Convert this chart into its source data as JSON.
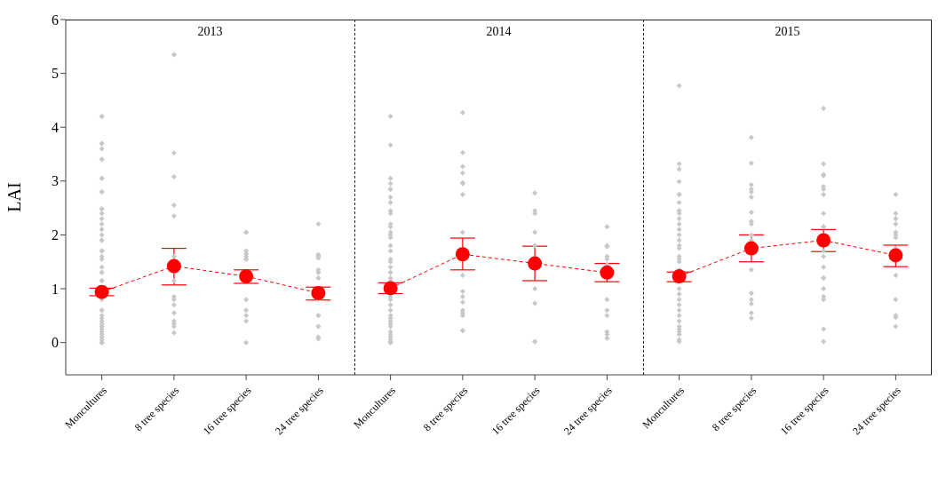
{
  "chart_data": [
    {
      "type": "line",
      "title": "2013",
      "ylabel": "LAI",
      "categories": [
        "Moncultures",
        "8 tree species",
        "16 tree species",
        "24 tree species"
      ],
      "ylim": [
        -0.6,
        6
      ],
      "yticks": [
        0,
        1,
        2,
        3,
        4,
        5,
        6
      ],
      "grid": false,
      "series": [
        {
          "type": "scatter",
          "color": "#c8c8c8",
          "marker": "diamond",
          "x": [
            "Moncultures",
            "Moncultures",
            "Moncultures",
            "Moncultures",
            "Moncultures",
            "Moncultures",
            "Moncultures",
            "Moncultures",
            "Moncultures",
            "Moncultures",
            "Moncultures",
            "Moncultures",
            "Moncultures",
            "Moncultures",
            "Moncultures",
            "Moncultures",
            "Moncultures",
            "Moncultures",
            "Moncultures",
            "Moncultures",
            "Moncultures",
            "Moncultures",
            "Moncultures",
            "Moncultures",
            "Moncultures",
            "Moncultures",
            "Moncultures",
            "Moncultures",
            "Moncultures",
            "Moncultures",
            "Moncultures",
            "Moncultures",
            "Moncultures",
            "Moncultures",
            "Moncultures",
            "Moncultures",
            "Moncultures",
            "Moncultures",
            "Moncultures",
            "Moncultures",
            "Moncultures",
            "Moncultures",
            "Moncultures",
            "Moncultures",
            "Moncultures",
            "Moncultures",
            "Moncultures",
            "Moncultures",
            "8 tree species",
            "8 tree species",
            "8 tree species",
            "8 tree species",
            "8 tree species",
            "8 tree species",
            "8 tree species",
            "8 tree species",
            "8 tree species",
            "8 tree species",
            "8 tree species",
            "8 tree species",
            "8 tree species",
            "8 tree species",
            "8 tree species",
            "8 tree species",
            "16 tree species",
            "16 tree species",
            "16 tree species",
            "16 tree species",
            "16 tree species",
            "16 tree species",
            "16 tree species",
            "16 tree species",
            "16 tree species",
            "16 tree species",
            "16 tree species",
            "16 tree species",
            "24 tree species",
            "24 tree species",
            "24 tree species",
            "24 tree species",
            "24 tree species",
            "24 tree species",
            "24 tree species",
            "24 tree species",
            "24 tree species",
            "24 tree species",
            "24 tree species",
            "24 tree species",
            "24 tree species",
            "24 tree species",
            "24 tree species",
            "24 tree species"
          ],
          "values": [
            4.2,
            4.2,
            3.7,
            3.7,
            3.6,
            3.4,
            3.4,
            3.05,
            3.05,
            2.8,
            2.8,
            2.48,
            2.48,
            2.4,
            2.3,
            2.2,
            2.1,
            2.0,
            1.9,
            1.9,
            1.7,
            1.7,
            1.7,
            1.55,
            1.6,
            1.4,
            1.3,
            1.3,
            1.15,
            1.15,
            1.15,
            0.8,
            0.6,
            0.6,
            0.5,
            0.45,
            0.4,
            0.35,
            0.3,
            0.3,
            0.25,
            0.2,
            0.15,
            0.1,
            0.05,
            0.0,
            0.0,
            0.0,
            5.35,
            5.35,
            3.52,
            3.08,
            2.55,
            2.35,
            1.6,
            1.15,
            0.85,
            0.8,
            0.7,
            0.55,
            0.4,
            0.35,
            0.3,
            0.18,
            2.05,
            2.05,
            1.7,
            1.65,
            1.55,
            1.55,
            1.6,
            0.8,
            0.6,
            0.5,
            0.4,
            0.0,
            2.2,
            1.57,
            1.6,
            1.63,
            1.63,
            1.35,
            1.3,
            1.3,
            1.2,
            0.8,
            0.5,
            0.5,
            0.3,
            0.3,
            0.1,
            0.07
          ]
        },
        {
          "color": "#ff0000",
          "marker": "circle",
          "line_style": "dashed",
          "values": [
            0.94,
            1.42,
            1.23,
            0.92
          ],
          "errors": [
            [
              0.87,
              1.01
            ],
            [
              1.07,
              1.75
            ],
            [
              1.1,
              1.35
            ],
            [
              0.79,
              1.03
            ]
          ]
        }
      ]
    },
    {
      "type": "line",
      "title": "2014",
      "categories": [
        "Moncultures",
        "8 tree species",
        "16 tree species",
        "24 tree species"
      ],
      "ylim": [
        -0.6,
        6
      ],
      "yticks": [
        0,
        1,
        2,
        3,
        4,
        5,
        6
      ],
      "tick_labels": "x",
      "grid": false,
      "series": [
        {
          "type": "scatter",
          "color": "#c8c8c8",
          "marker": "diamond",
          "x": [
            "Moncultures",
            "Moncultures",
            "Moncultures",
            "Moncultures",
            "Moncultures",
            "Moncultures",
            "Moncultures",
            "Moncultures",
            "Moncultures",
            "Moncultures",
            "Moncultures",
            "Moncultures",
            "Moncultures",
            "Moncultures",
            "Moncultures",
            "Moncultures",
            "Moncultures",
            "Moncultures",
            "Moncultures",
            "Moncultures",
            "Moncultures",
            "Moncultures",
            "Moncultures",
            "Moncultures",
            "Moncultures",
            "Moncultures",
            "Moncultures",
            "Moncultures",
            "Moncultures",
            "Moncultures",
            "Moncultures",
            "Moncultures",
            "Moncultures",
            "Moncultures",
            "Moncultures",
            "Moncultures",
            "Moncultures",
            "Moncultures",
            "Moncultures",
            "Moncultures",
            "8 tree species",
            "8 tree species",
            "8 tree species",
            "8 tree species",
            "8 tree species",
            "8 tree species",
            "8 tree species",
            "8 tree species",
            "8 tree species",
            "8 tree species",
            "8 tree species",
            "8 tree species",
            "8 tree species",
            "8 tree species",
            "8 tree species",
            "8 tree species",
            "8 tree species",
            "16 tree species",
            "16 tree species",
            "16 tree species",
            "16 tree species",
            "16 tree species",
            "16 tree species",
            "16 tree species",
            "16 tree species",
            "16 tree species",
            "24 tree species",
            "24 tree species",
            "24 tree species",
            "24 tree species",
            "24 tree species",
            "24 tree species",
            "24 tree species",
            "24 tree species",
            "24 tree species",
            "24 tree species",
            "24 tree species",
            "24 tree species"
          ],
          "values": [
            4.2,
            3.67,
            3.05,
            2.95,
            2.85,
            2.85,
            2.7,
            2.6,
            2.45,
            2.4,
            2.2,
            2.15,
            2.05,
            2.0,
            1.95,
            1.8,
            1.7,
            1.55,
            1.5,
            1.4,
            1.3,
            1.3,
            1.2,
            1.15,
            0.85,
            0.8,
            0.7,
            0.6,
            0.5,
            0.45,
            0.4,
            0.35,
            0.3,
            0.2,
            0.15,
            0.1,
            0.05,
            0.02,
            0.0,
            0.0,
            4.27,
            3.53,
            3.27,
            3.15,
            2.97,
            2.95,
            2.75,
            2.05,
            1.25,
            0.95,
            0.85,
            0.75,
            0.6,
            0.55,
            0.5,
            0.22,
            0.22,
            2.78,
            2.45,
            2.4,
            2.05,
            1.8,
            1.0,
            0.73,
            0.02,
            0.02,
            2.15,
            1.8,
            1.78,
            1.6,
            1.55,
            1.45,
            0.8,
            0.6,
            0.5,
            0.2,
            0.15,
            0.08
          ]
        },
        {
          "color": "#ff0000",
          "marker": "circle",
          "line_style": "dashed",
          "values": [
            1.01,
            1.64,
            1.47,
            1.3
          ],
          "errors": [
            [
              0.91,
              1.11
            ],
            [
              1.35,
              1.94
            ],
            [
              1.15,
              1.79
            ],
            [
              1.13,
              1.47
            ]
          ]
        }
      ]
    },
    {
      "type": "line",
      "title": "2015",
      "categories": [
        "Moncultures",
        "8 tree species",
        "16 tree species",
        "24 tree species"
      ],
      "ylim": [
        -0.6,
        6
      ],
      "yticks": [
        0,
        1,
        2,
        3,
        4,
        5,
        6
      ],
      "tick_labels": "x",
      "grid": false,
      "series": [
        {
          "type": "scatter",
          "color": "#c8c8c8",
          "marker": "diamond",
          "x": [
            "Moncultures",
            "Moncultures",
            "Moncultures",
            "Moncultures",
            "Moncultures",
            "Moncultures",
            "Moncultures",
            "Moncultures",
            "Moncultures",
            "Moncultures",
            "Moncultures",
            "Moncultures",
            "Moncultures",
            "Moncultures",
            "Moncultures",
            "Moncultures",
            "Moncultures",
            "Moncultures",
            "Moncultures",
            "Moncultures",
            "Moncultures",
            "Moncultures",
            "Moncultures",
            "Moncultures",
            "Moncultures",
            "Moncultures",
            "Moncultures",
            "Moncultures",
            "Moncultures",
            "Moncultures",
            "Moncultures",
            "Moncultures",
            "Moncultures",
            "Moncultures",
            "8 tree species",
            "8 tree species",
            "8 tree species",
            "8 tree species",
            "8 tree species",
            "8 tree species",
            "8 tree species",
            "8 tree species",
            "8 tree species",
            "8 tree species",
            "8 tree species",
            "8 tree species",
            "8 tree species",
            "8 tree species",
            "8 tree species",
            "8 tree species",
            "8 tree species",
            "16 tree species",
            "16 tree species",
            "16 tree species",
            "16 tree species",
            "16 tree species",
            "16 tree species",
            "16 tree species",
            "16 tree species",
            "16 tree species",
            "16 tree species",
            "16 tree species",
            "16 tree species",
            "16 tree species",
            "16 tree species",
            "16 tree species",
            "16 tree species",
            "16 tree species",
            "16 tree species",
            "16 tree species",
            "16 tree species",
            "24 tree species",
            "24 tree species",
            "24 tree species",
            "24 tree species",
            "24 tree species",
            "24 tree species",
            "24 tree species",
            "24 tree species",
            "24 tree species",
            "24 tree species",
            "24 tree species",
            "24 tree species",
            "24 tree species",
            "24 tree species"
          ],
          "values": [
            4.77,
            3.32,
            3.22,
            2.99,
            2.75,
            2.75,
            2.6,
            2.45,
            2.45,
            2.4,
            2.3,
            2.2,
            2.1,
            2.0,
            1.9,
            1.8,
            1.75,
            1.6,
            1.55,
            1.5,
            1.35,
            1.0,
            0.9,
            0.8,
            0.7,
            0.6,
            0.5,
            0.4,
            0.3,
            0.25,
            0.2,
            0.15,
            0.05,
            0.02,
            3.81,
            3.33,
            2.93,
            2.85,
            2.8,
            2.7,
            2.42,
            2.25,
            2.2,
            2.0,
            1.9,
            1.35,
            0.92,
            0.8,
            0.72,
            0.55,
            0.45,
            4.35,
            3.32,
            3.12,
            3.1,
            2.9,
            2.85,
            2.75,
            2.4,
            2.15,
            2.15,
            1.7,
            1.6,
            1.4,
            1.2,
            1.2,
            1.0,
            0.85,
            0.8,
            0.25,
            0.02,
            2.75,
            2.4,
            2.3,
            2.3,
            2.2,
            2.05,
            2.0,
            1.95,
            1.75,
            1.25,
            0.8,
            0.5,
            0.3,
            0.47
          ]
        },
        {
          "color": "#ff0000",
          "marker": "circle",
          "line_style": "dashed",
          "values": [
            1.23,
            1.75,
            1.9,
            1.62
          ],
          "errors": [
            [
              1.13,
              1.31
            ],
            [
              1.5,
              2.0
            ],
            [
              1.69,
              2.1
            ],
            [
              1.41,
              1.81
            ]
          ]
        }
      ]
    }
  ]
}
